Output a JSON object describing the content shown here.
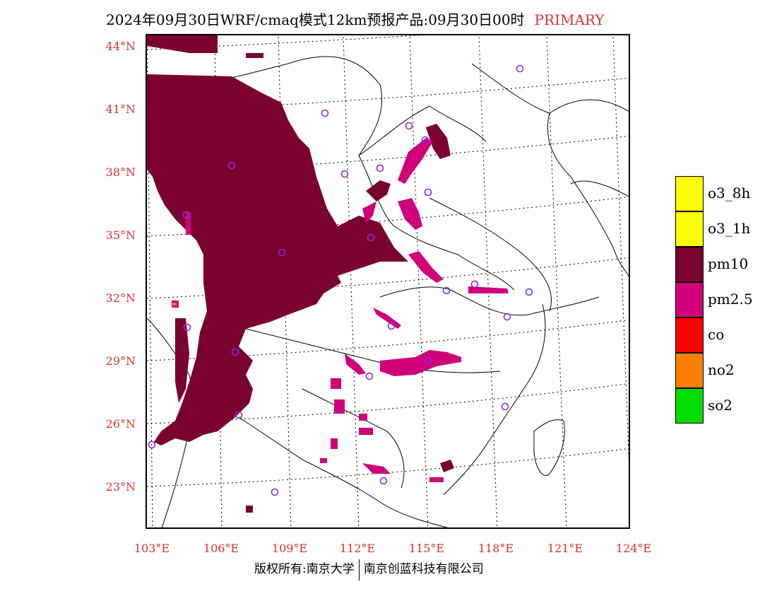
{
  "title": {
    "main": "2024年09月30日WRF/cmaq模式12km预报产品:09月30日00时",
    "tag": "PRIMARY"
  },
  "lat_labels": [
    "44°N",
    "41°N",
    "38°N",
    "35°N",
    "32°N",
    "29°N",
    "26°N",
    "23°N"
  ],
  "lon_labels": [
    "103°E",
    "106°E",
    "109°E",
    "112°E",
    "115°E",
    "118°E",
    "121°E",
    "124°E"
  ],
  "legend": [
    {
      "label": "o3_8h",
      "color": "#ffff00"
    },
    {
      "label": "o3_1h",
      "color": "#ffff00"
    },
    {
      "label": "pm10",
      "color": "#7a0030"
    },
    {
      "label": "pm2.5",
      "color": "#d0007a"
    },
    {
      "label": "co",
      "color": "#ff0000"
    },
    {
      "label": "no2",
      "color": "#ff7f00"
    },
    {
      "label": "so2",
      "color": "#00dd00"
    }
  ],
  "footer": {
    "left": "版权所有:南京大学",
    "right": "南京创蓝科技有限公司"
  }
}
